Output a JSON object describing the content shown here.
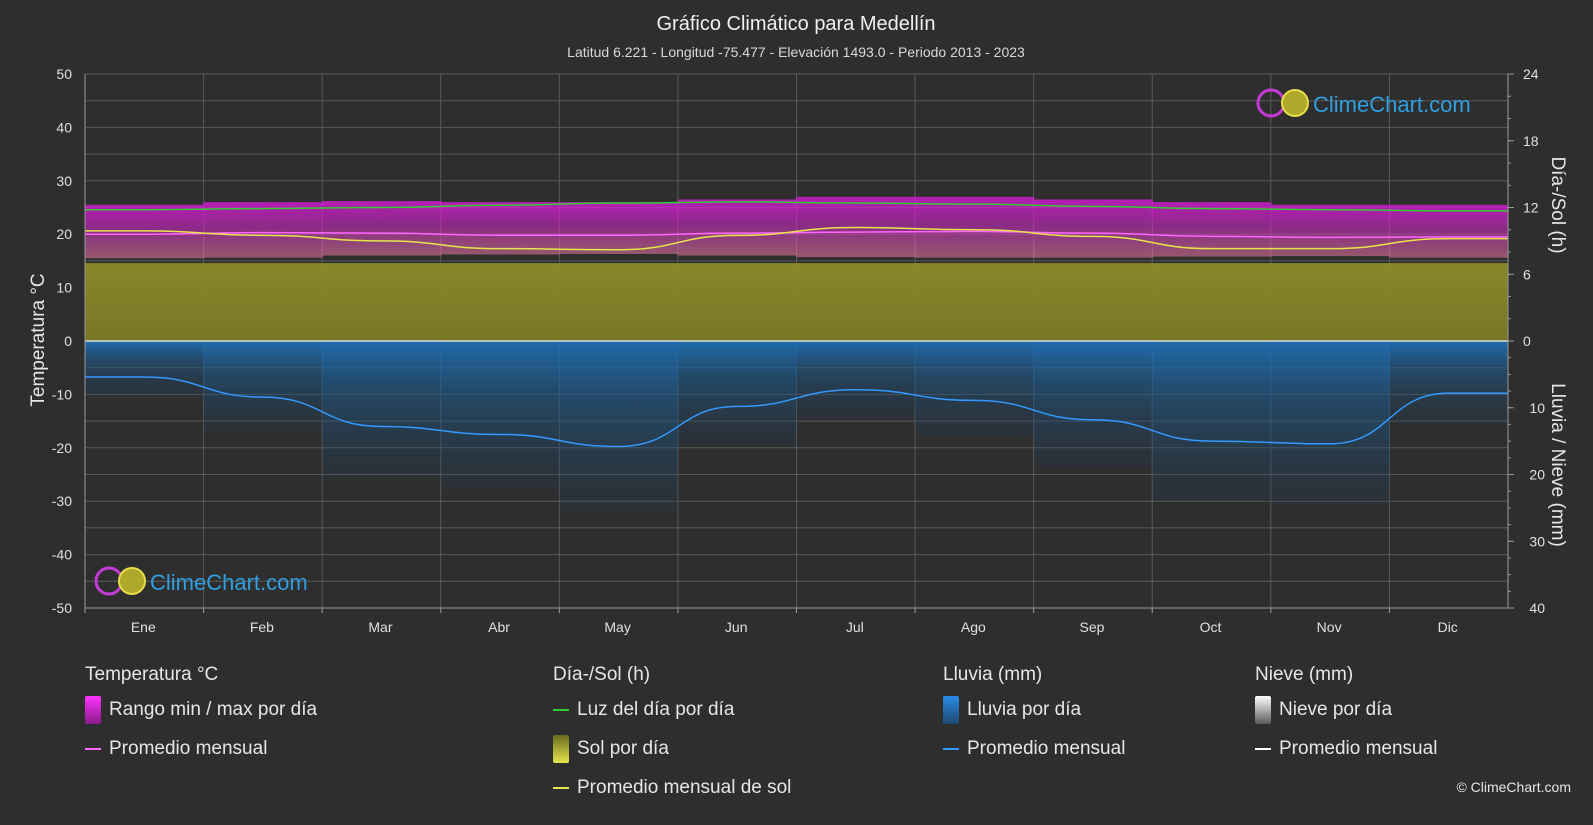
{
  "title": "Gráfico Climático para Medellín",
  "subtitle": "Latitud 6.221 - Longitud -75.477 - Elevación 1493.0 - Periodo 2013 - 2023",
  "brand": "ClimeChart.com",
  "copyright": "© ClimeChart.com",
  "colors": {
    "background": "#2e2e2e",
    "temp_range": "#d61ad6",
    "temp_avg": "#ff66ff",
    "daylight": "#33cc33",
    "sunshine": "#8c8c2a",
    "sun_avg": "#e6e64c",
    "rain": "#1f6fb3",
    "rain_avg": "#3399ff",
    "snow_avg": "#ffffff",
    "brand_text": "#2f9fe0"
  },
  "chart_data": {
    "type": "area",
    "months": [
      "Ene",
      "Feb",
      "Mar",
      "Abr",
      "May",
      "Jun",
      "Jul",
      "Ago",
      "Sep",
      "Oct",
      "Nov",
      "Dic"
    ],
    "left_axis": {
      "label": "Temperatura °C",
      "ticks": [
        "50",
        "40",
        "30",
        "20",
        "10",
        "0",
        "-10",
        "-20",
        "-30",
        "-40",
        "-50"
      ],
      "range": [
        -50,
        50
      ]
    },
    "right_axis_top": {
      "label": "Día-/Sol (h)",
      "ticks": [
        "24",
        "18",
        "12",
        "6",
        "0"
      ],
      "range": [
        0,
        24
      ]
    },
    "right_axis_bottom": {
      "label": "Lluvia / Nieve (mm)",
      "ticks": [
        "0",
        "10",
        "20",
        "30",
        "40"
      ],
      "range": [
        0,
        40
      ]
    },
    "series": [
      {
        "name": "Luz del día por día",
        "axis": "sun_hours",
        "values": [
          11.8,
          11.9,
          12.0,
          12.2,
          12.4,
          12.5,
          12.4,
          12.3,
          12.1,
          11.9,
          11.8,
          11.7
        ]
      },
      {
        "name": "Rango min / max por día",
        "axis": "temperature",
        "min": [
          15.5,
          15.6,
          16.0,
          16.2,
          16.3,
          16.0,
          15.7,
          15.6,
          15.6,
          15.8,
          15.9,
          15.6
        ],
        "max": [
          25.5,
          26.0,
          26.2,
          26.0,
          26.0,
          26.5,
          27.0,
          27.0,
          26.5,
          26.0,
          25.5,
          25.5
        ]
      },
      {
        "name": "Promedio mensual",
        "axis": "temperature",
        "values": [
          20.0,
          20.3,
          20.2,
          19.8,
          19.8,
          20.2,
          20.4,
          20.5,
          20.2,
          19.6,
          19.4,
          19.5
        ]
      },
      {
        "name": "Sol por día",
        "axis": "sun_hours",
        "values": [
          7.0,
          7.0,
          7.0,
          7.0,
          7.0,
          7.0,
          7.0,
          7.0,
          7.0,
          7.0,
          7.0,
          7.0
        ]
      },
      {
        "name": "Promedio mensual de sol",
        "axis": "sun_hours",
        "values": [
          9.9,
          9.5,
          9.0,
          8.3,
          8.2,
          9.5,
          10.2,
          10.0,
          9.4,
          8.3,
          8.3,
          9.2
        ]
      },
      {
        "name": "Lluvia por día",
        "axis": "precipitation",
        "values": [
          5.4,
          8.4,
          12.8,
          14.0,
          15.8,
          9.8,
          7.3,
          8.9,
          11.8,
          15.0,
          15.4,
          7.8
        ]
      },
      {
        "name": "Promedio mensual",
        "axis": "precipitation",
        "values": [
          5.4,
          8.4,
          12.8,
          14.0,
          15.8,
          9.8,
          7.3,
          8.9,
          11.8,
          15.0,
          15.4,
          7.8
        ]
      }
    ]
  },
  "legend": {
    "temperature": {
      "title": "Temperatura °C",
      "items": [
        "Rango min / max por día",
        "Promedio mensual"
      ]
    },
    "sun": {
      "title": "Día-/Sol (h)",
      "items": [
        "Luz del día por día",
        "Sol por día",
        "Promedio mensual de sol"
      ]
    },
    "rain": {
      "title": "Lluvia (mm)",
      "items": [
        "Lluvia por día",
        "Promedio mensual"
      ]
    },
    "snow": {
      "title": "Nieve (mm)",
      "items": [
        "Nieve por día",
        "Promedio mensual"
      ]
    }
  }
}
